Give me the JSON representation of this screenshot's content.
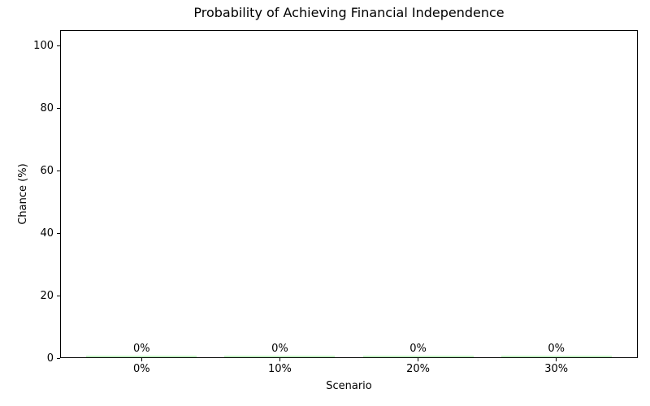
{
  "chart_data": {
    "type": "bar",
    "title": "Probability of Achieving Financial Independence",
    "xlabel": "Scenario",
    "ylabel": "Chance (%)",
    "categories": [
      "0%",
      "10%",
      "20%",
      "30%"
    ],
    "values": [
      0,
      0,
      0,
      0
    ],
    "value_labels": [
      "0%",
      "0%",
      "0%",
      "0%"
    ],
    "yticks": [
      0,
      20,
      40,
      60,
      80,
      100
    ],
    "ytick_labels": [
      "0",
      "20",
      "40",
      "60",
      "80",
      "100"
    ],
    "ylim": [
      0,
      105
    ],
    "xlim": [
      -0.59,
      3.59
    ],
    "bar_width": 0.8,
    "bar_color": "#90EE90",
    "grid": false,
    "legend_position": "none",
    "background_color": "#ffffff",
    "text_color": "#000000"
  }
}
